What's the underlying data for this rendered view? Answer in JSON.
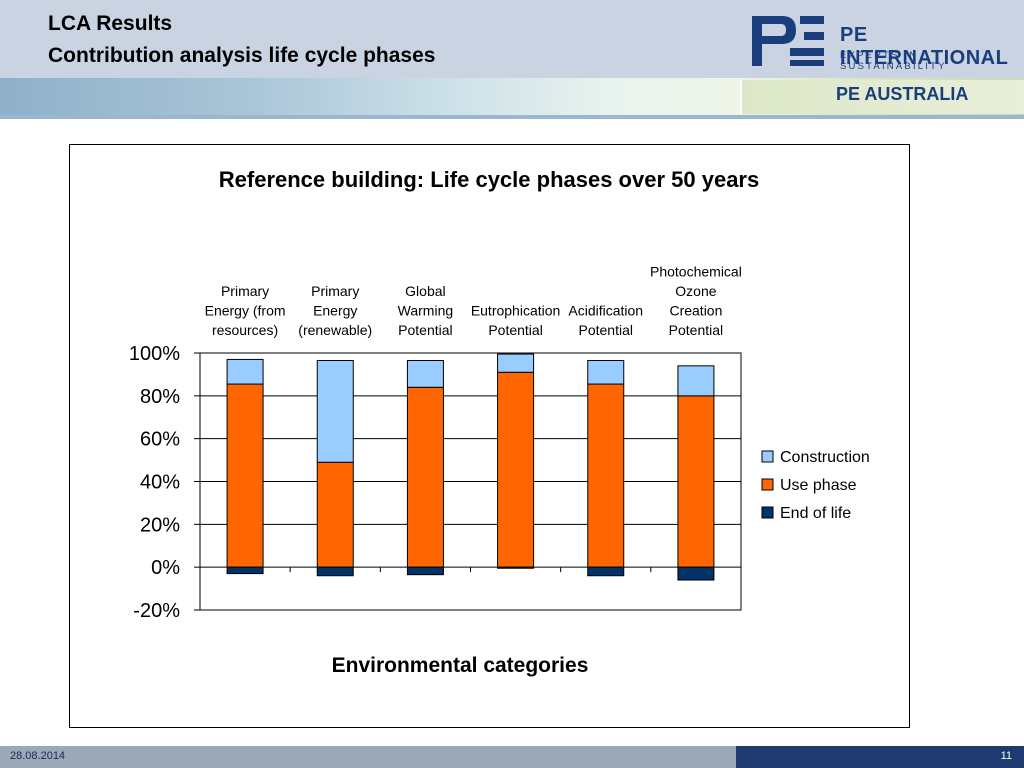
{
  "slide": {
    "title_line1": "LCA Results",
    "title_line2": "Contribution analysis life cycle phases",
    "logo_name": "PE INTERNATIONAL",
    "logo_tagline": "EXPERTS IN SUSTAINABILITY",
    "sub_logo": "PE AUSTRALIA",
    "footer_date": "28.08.2014",
    "page_number": "11"
  },
  "chart_data": {
    "type": "bar",
    "stacked": true,
    "title": "Reference building: Life cycle phases over 50 years",
    "xlabel": "Environmental categories",
    "ylabel": "",
    "ylim": [
      -20,
      100
    ],
    "yticks": [
      "100%",
      "80%",
      "60%",
      "40%",
      "20%",
      "0%",
      "-20%"
    ],
    "categories": [
      [
        "Primary",
        "Energy (from",
        "resources)"
      ],
      [
        "Primary",
        "Energy",
        "(renewable)"
      ],
      [
        "Global",
        "Warming",
        "Potential"
      ],
      [
        "Eutrophication",
        "Potential"
      ],
      [
        "Acidification",
        "Potential"
      ],
      [
        "Photochemical",
        "Ozone",
        "Creation",
        "Potential"
      ]
    ],
    "category_position": "top",
    "grid": true,
    "legend_position": "right",
    "series": [
      {
        "name": "Construction",
        "color": "#99ccff",
        "values": [
          11.5,
          47.5,
          12.5,
          8.5,
          11,
          14
        ]
      },
      {
        "name": "Use phase",
        "color": "#ff6600",
        "values": [
          85.5,
          49,
          84,
          91,
          85.5,
          80
        ]
      },
      {
        "name": "End of life",
        "color": "#003366",
        "values": [
          -3,
          -4,
          -3.5,
          -0.5,
          -4,
          -6
        ]
      }
    ]
  }
}
